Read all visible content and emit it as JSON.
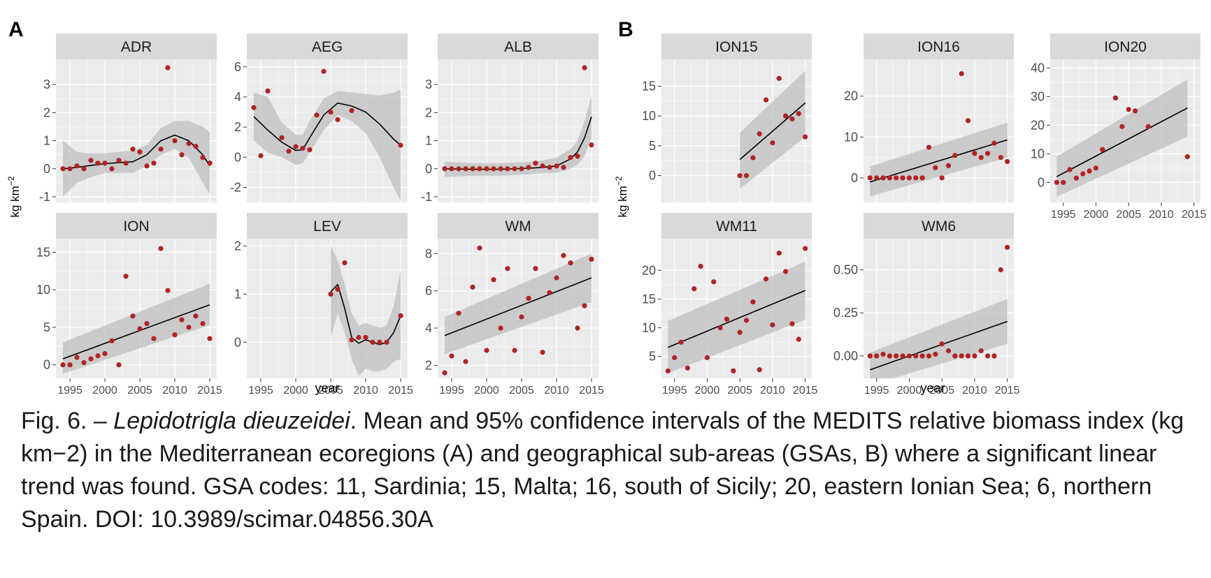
{
  "figure": {
    "group_labels": [
      "A",
      "B"
    ],
    "y_axis_label": "kg km",
    "y_axis_label_superscript": "−2",
    "x_axis_label": "year"
  },
  "colors": {
    "panel_bg": "#ebebeb",
    "strip_bg": "#d9d9d9",
    "grid": "#ffffff",
    "ribbon": "#bfbfbf",
    "line": "#000000",
    "point": "#b22222",
    "tick_text": "#4d4d4d"
  },
  "caption": {
    "fig_label": "Fig. 6. – ",
    "species": "Lepidotrigla dieuzeidei",
    "rest": ". Mean and 95% confidence intervals of the MEDITS relative biomass index (kg km−2) in the Mediterranean ecoregions (A) and geographical sub-areas (GSAs, B) where a significant linear trend was found. GSA codes: 11, Sardinia; 15, Malta; 16, south of Sicily; 20, eastern Ionian Sea; 6, northern Spain. DOI: 10.3989/scimar.04856.30A"
  },
  "chart_data": [
    {
      "type": "scatter",
      "group": "A",
      "title": "ADR",
      "ylim": [
        -1.2,
        3.9
      ],
      "yticks": [
        -1,
        0,
        1,
        2,
        3
      ],
      "x": [
        1994,
        1995,
        1996,
        1997,
        1998,
        1999,
        2000,
        2001,
        2002,
        2003,
        2004,
        2005,
        2006,
        2007,
        2008,
        2009,
        2010,
        2011,
        2012,
        2013,
        2014,
        2015
      ],
      "y": [
        0.0,
        0.0,
        0.1,
        0.0,
        0.3,
        0.2,
        0.2,
        0.0,
        0.3,
        0.2,
        0.7,
        0.6,
        0.1,
        0.2,
        0.7,
        3.6,
        1.0,
        0.5,
        0.9,
        0.8,
        0.4,
        0.2
      ],
      "fit": {
        "x": [
          1994,
          1996,
          1998,
          2000,
          2002,
          2004,
          2006,
          2008,
          2010,
          2012,
          2014,
          2015
        ],
        "y": [
          0.0,
          0.05,
          0.12,
          0.18,
          0.22,
          0.25,
          0.5,
          1.0,
          1.2,
          1.0,
          0.5,
          0.1
        ]
      },
      "ci_upper": [
        1.0,
        0.6,
        0.55,
        0.55,
        0.6,
        0.65,
        0.85,
        1.45,
        1.7,
        1.7,
        1.5,
        1.3
      ],
      "ci_lower": [
        -1.0,
        -0.5,
        -0.3,
        -0.15,
        -0.15,
        -0.15,
        0.1,
        0.5,
        0.7,
        0.4,
        -0.5,
        -0.9
      ]
    },
    {
      "type": "scatter",
      "group": "A",
      "title": "AEG",
      "ylim": [
        -3,
        6.5
      ],
      "yticks": [
        -2,
        0,
        2,
        4,
        6
      ],
      "x": [
        1994,
        1995,
        1996,
        1998,
        1999,
        2000,
        2001,
        2002,
        2003,
        2004,
        2005,
        2006,
        2008,
        2015
      ],
      "y": [
        3.3,
        0.1,
        4.4,
        1.3,
        0.4,
        0.7,
        0.6,
        0.5,
        2.8,
        5.7,
        3.0,
        2.5,
        3.1,
        0.8
      ],
      "fit": {
        "x": [
          1994,
          1996,
          1998,
          2000,
          2001,
          2002,
          2004,
          2006,
          2008,
          2010,
          2012,
          2014,
          2015
        ],
        "y": [
          2.7,
          1.8,
          1.0,
          0.45,
          0.5,
          1.3,
          2.8,
          3.6,
          3.4,
          3.0,
          2.2,
          1.2,
          0.8
        ]
      },
      "ci_upper": [
        4.3,
        4.0,
        2.3,
        1.5,
        1.5,
        2.4,
        3.9,
        4.4,
        4.3,
        4.2,
        4.1,
        4.3,
        4.5
      ],
      "ci_lower": [
        1.1,
        0.3,
        0.0,
        -0.5,
        -0.4,
        0.3,
        1.8,
        2.8,
        2.4,
        1.6,
        0.0,
        -2.0,
        -2.9
      ]
    },
    {
      "type": "scatter",
      "group": "A",
      "title": "ALB",
      "ylim": [
        -1.2,
        3.9
      ],
      "yticks": [
        -1,
        0,
        1,
        2,
        3
      ],
      "x": [
        1994,
        1995,
        1996,
        1997,
        1998,
        1999,
        2000,
        2001,
        2002,
        2003,
        2004,
        2005,
        2006,
        2007,
        2008,
        2009,
        2010,
        2011,
        2012,
        2013,
        2014,
        2015
      ],
      "y": [
        0,
        0,
        0,
        0,
        0,
        0,
        0,
        0,
        0,
        0,
        0,
        0,
        0.05,
        0.2,
        0.1,
        0.05,
        0.1,
        0.05,
        0.4,
        0.45,
        3.6,
        0.85
      ],
      "fit": {
        "x": [
          1994,
          1998,
          2002,
          2006,
          2008,
          2010,
          2012,
          2013,
          2014,
          2015
        ],
        "y": [
          0.0,
          -0.02,
          -0.02,
          0.02,
          0.05,
          0.1,
          0.35,
          0.6,
          1.1,
          1.85
        ]
      },
      "ci_upper": [
        0.25,
        0.2,
        0.2,
        0.25,
        0.3,
        0.4,
        0.7,
        1.0,
        1.7,
        2.6
      ],
      "ci_lower": [
        -0.3,
        -0.25,
        -0.25,
        -0.2,
        -0.15,
        -0.15,
        0.0,
        0.15,
        0.45,
        1.1
      ]
    },
    {
      "type": "scatter",
      "group": "A",
      "title": "ION",
      "ylim": [
        -1.8,
        16.8
      ],
      "yticks": [
        0,
        5,
        10,
        15
      ],
      "x": [
        1994,
        1995,
        1996,
        1997,
        1998,
        1999,
        2000,
        2001,
        2002,
        2003,
        2004,
        2005,
        2006,
        2007,
        2008,
        2009,
        2010,
        2011,
        2012,
        2013,
        2014,
        2015
      ],
      "y": [
        0,
        0,
        1.0,
        0.3,
        0.8,
        1.2,
        1.5,
        3.2,
        0,
        11.8,
        6.5,
        4.8,
        5.5,
        3.5,
        15.5,
        9.9,
        4.0,
        6.0,
        5.0,
        6.5,
        5.5,
        3.5
      ],
      "fit": {
        "x": [
          1994,
          2015
        ],
        "y": [
          0.8,
          8.0
        ]
      },
      "ci_upper": [
        3.0,
        10.8
      ],
      "ci_lower": [
        -1.2,
        5.3
      ]
    },
    {
      "type": "scatter",
      "group": "A",
      "title": "LEV",
      "ylim": [
        -0.75,
        2.15
      ],
      "yticks": [
        0,
        1,
        2
      ],
      "x": [
        2005,
        2006,
        2007,
        2008,
        2009,
        2010,
        2011,
        2012,
        2013,
        2015
      ],
      "y": [
        1.0,
        1.1,
        1.65,
        0.05,
        0.1,
        0.1,
        0.0,
        0.0,
        0.0,
        0.55
      ],
      "fit": {
        "x": [
          2005,
          2006,
          2007,
          2008,
          2009,
          2010,
          2011,
          2012,
          2013,
          2014,
          2015
        ],
        "y": [
          1.05,
          1.2,
          0.7,
          0.1,
          -0.02,
          0.05,
          0.0,
          -0.05,
          0.0,
          0.2,
          0.55
        ]
      },
      "ci_upper": [
        2.0,
        1.7,
        1.2,
        0.6,
        0.35,
        0.4,
        0.35,
        0.3,
        0.35,
        0.75,
        1.5
      ],
      "ci_lower": [
        0.1,
        0.6,
        0.2,
        -0.35,
        -0.7,
        -0.55,
        -0.6,
        -0.6,
        -0.55,
        -0.4,
        -0.35
      ]
    },
    {
      "type": "scatter",
      "group": "A",
      "title": "WM",
      "ylim": [
        1.3,
        8.8
      ],
      "yticks": [
        2,
        4,
        6,
        8
      ],
      "x": [
        1994,
        1995,
        1996,
        1997,
        1998,
        1999,
        2000,
        2001,
        2002,
        2003,
        2004,
        2005,
        2006,
        2007,
        2008,
        2009,
        2010,
        2011,
        2012,
        2013,
        2014,
        2015
      ],
      "y": [
        1.6,
        2.5,
        4.8,
        2.2,
        6.2,
        8.3,
        2.8,
        6.6,
        4.0,
        7.2,
        2.8,
        4.6,
        5.6,
        7.2,
        2.7,
        5.9,
        6.7,
        7.9,
        7.5,
        4.0,
        5.2,
        7.7
      ],
      "fit": {
        "x": [
          1994,
          2015
        ],
        "y": [
          3.6,
          6.7
        ]
      },
      "ci_upper": [
        4.6,
        8.0
      ],
      "ci_lower": [
        2.6,
        5.4
      ]
    },
    {
      "type": "scatter",
      "group": "B",
      "title": "ION15",
      "ylim": [
        -4.5,
        19.5
      ],
      "yticks": [
        0,
        5,
        10,
        15
      ],
      "x": [
        2005,
        2006,
        2007,
        2008,
        2009,
        2010,
        2011,
        2012,
        2013,
        2014,
        2015
      ],
      "y": [
        0,
        0,
        3.0,
        7.0,
        12.7,
        5.5,
        16.3,
        10.0,
        9.5,
        10.4,
        6.5
      ],
      "fit": {
        "x": [
          2005,
          2015
        ],
        "y": [
          2.7,
          12.2
        ]
      },
      "ci_upper": [
        7.2,
        17.6
      ],
      "ci_lower": [
        -2.2,
        6.5
      ]
    },
    {
      "type": "scatter",
      "group": "B",
      "title": "ION16",
      "ylim": [
        -6,
        29
      ],
      "yticks": [
        0,
        10,
        20
      ],
      "x": [
        1994,
        1995,
        1996,
        1997,
        1998,
        1999,
        2000,
        2001,
        2002,
        2003,
        2004,
        2005,
        2006,
        2007,
        2008,
        2009,
        2010,
        2011,
        2012,
        2013,
        2014,
        2015
      ],
      "y": [
        0,
        0,
        0,
        0,
        0,
        0,
        0,
        0,
        0,
        7.5,
        2.5,
        0,
        3.0,
        5.5,
        25.5,
        14.0,
        6.0,
        5.0,
        6.0,
        8.5,
        5.0,
        4.0
      ],
      "fit": {
        "x": [
          1994,
          2015
        ],
        "y": [
          -1.0,
          9.3
        ]
      },
      "ci_upper": [
        2.8,
        13.5
      ],
      "ci_lower": [
        -4.5,
        5.0
      ]
    },
    {
      "type": "scatter",
      "group": "B",
      "title": "ION20",
      "ylim": [
        -7,
        43
      ],
      "yticks": [
        0,
        10,
        20,
        30,
        40
      ],
      "x": [
        1994,
        1995,
        1996,
        1997,
        1998,
        1999,
        2000,
        2001,
        2003,
        2004,
        2005,
        2006,
        2008,
        2014
      ],
      "y": [
        0,
        0,
        4.5,
        1.5,
        3.0,
        4.0,
        5.0,
        11.5,
        29.5,
        19.5,
        25.5,
        25.0,
        19.5,
        9.0
      ],
      "fit": {
        "x": [
          1994,
          2014
        ],
        "y": [
          2.0,
          26.0
        ]
      },
      "ci_upper": [
        9.0,
        36.0
      ],
      "ci_lower": [
        -5.0,
        16.0
      ]
    },
    {
      "type": "scatter",
      "group": "B",
      "title": "WM11",
      "ylim": [
        1.2,
        25.5
      ],
      "yticks": [
        5,
        10,
        15,
        20
      ],
      "x": [
        1994,
        1995,
        1996,
        1997,
        1998,
        1999,
        2000,
        2001,
        2002,
        2003,
        2004,
        2005,
        2006,
        2007,
        2008,
        2009,
        2010,
        2011,
        2012,
        2013,
        2014,
        2015
      ],
      "y": [
        2.5,
        4.8,
        7.5,
        3.0,
        16.8,
        20.7,
        4.8,
        18.0,
        10.0,
        11.5,
        2.5,
        9.2,
        11.3,
        14.5,
        2.7,
        18.5,
        10.5,
        23.0,
        19.8,
        10.7,
        8.0,
        23.8
      ],
      "fit": {
        "x": [
          1994,
          2015
        ],
        "y": [
          6.6,
          16.5
        ]
      },
      "ci_upper": [
        11.2,
        21.5
      ],
      "ci_lower": [
        2.1,
        11.4
      ]
    },
    {
      "type": "scatter",
      "group": "B",
      "title": "WM6",
      "ylim": [
        -0.13,
        0.68
      ],
      "yticks": [
        0.0,
        0.25,
        0.5
      ],
      "x": [
        1994,
        1995,
        1996,
        1997,
        1998,
        1999,
        2000,
        2001,
        2002,
        2003,
        2004,
        2005,
        2006,
        2007,
        2008,
        2009,
        2010,
        2011,
        2012,
        2013,
        2014,
        2015
      ],
      "y": [
        0,
        0,
        0.01,
        0,
        0,
        0,
        0,
        0,
        0,
        0,
        0.01,
        0.07,
        0.03,
        0,
        0,
        0,
        0,
        0.03,
        0,
        0,
        0.5,
        0.63
      ],
      "fit": {
        "x": [
          1994,
          2015
        ],
        "y": [
          -0.08,
          0.2
        ]
      },
      "ci_upper": [
        0.02,
        0.33
      ],
      "ci_lower": [
        -0.17,
        0.07
      ]
    }
  ]
}
